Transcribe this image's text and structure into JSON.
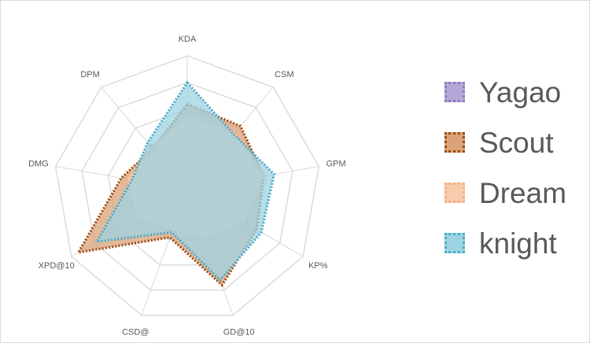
{
  "chart_data": {
    "type": "radar",
    "title": "",
    "axes": [
      "KDA",
      "CSM",
      "GPM",
      "KP%",
      "GD@10",
      "CSD@",
      "XPD@10",
      "DMG",
      "DPM"
    ],
    "range": [
      0,
      5
    ],
    "gridlines": 5,
    "series": [
      {
        "name": "Yagao",
        "fill": "#b4a7d6",
        "stroke": "#8e7cc3",
        "values": [
          1.3,
          1.0,
          2.3,
          2.6,
          1.5,
          1.2,
          2.0,
          1.6,
          2.2
        ]
      },
      {
        "name": "Scout",
        "fill": "#d9a27a",
        "stroke": "#9c4a0e",
        "values": [
          3.2,
          3.1,
          2.9,
          3.0,
          3.8,
          1.9,
          4.7,
          2.5,
          2.0
        ]
      },
      {
        "name": "Dream",
        "fill": "#f8cbad",
        "stroke": "#f4b183",
        "values": [
          2.8,
          2.8,
          2.9,
          2.5,
          2.0,
          1.6,
          2.2,
          2.3,
          2.1
        ]
      },
      {
        "name": "knight",
        "fill": "#9dd3e3",
        "stroke": "#4bacc6",
        "values": [
          4.0,
          2.7,
          3.3,
          3.2,
          3.6,
          1.7,
          3.9,
          2.1,
          2.3
        ]
      }
    ],
    "legend_position": "right"
  }
}
